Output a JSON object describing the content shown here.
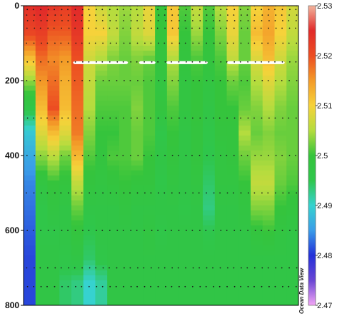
{
  "chart_data": {
    "type": "heatmap",
    "title": "",
    "xlabel": "",
    "ylabel": "",
    "y_axis": {
      "reversed": true,
      "ylim": [
        0,
        800
      ],
      "ticks": [
        0,
        200,
        400,
        600,
        800
      ]
    },
    "colorbar": {
      "min": 2.47,
      "max": 2.53,
      "ticks": [
        2.53,
        2.52,
        2.51,
        2.5,
        2.49,
        2.48,
        2.47
      ],
      "tick_labels": [
        "2.53",
        "2.52",
        "2.51",
        "2.5",
        "2.49",
        "2.48",
        "2.47"
      ],
      "stops": [
        {
          "v": 2.47,
          "c": "#f3a6f5"
        },
        {
          "v": 2.475,
          "c": "#6a46d4"
        },
        {
          "v": 2.48,
          "c": "#2330d8"
        },
        {
          "v": 2.485,
          "c": "#3a9ce8"
        },
        {
          "v": 2.49,
          "c": "#36d2cf"
        },
        {
          "v": 2.495,
          "c": "#2fc64c"
        },
        {
          "v": 2.5,
          "c": "#35c43c"
        },
        {
          "v": 2.505,
          "c": "#b4dc3e"
        },
        {
          "v": 2.51,
          "c": "#f6d23a"
        },
        {
          "v": 2.515,
          "c": "#f39a28"
        },
        {
          "v": 2.52,
          "c": "#ec4d22"
        },
        {
          "v": 2.525,
          "c": "#e12a2a"
        },
        {
          "v": 2.53,
          "c": "#f2b49c"
        }
      ]
    },
    "columns": [
      [
        2.524,
        2.521,
        2.512,
        2.503,
        2.496,
        2.489,
        2.486,
        2.484,
        2.483,
        2.482,
        2.481,
        2.481
      ],
      [
        2.525,
        2.522,
        2.518,
        2.515,
        2.512,
        2.508,
        2.503,
        2.498,
        2.496,
        2.496,
        2.497,
        2.497
      ],
      [
        2.523,
        2.519,
        2.516,
        2.518,
        2.52,
        2.512,
        2.505,
        2.5,
        2.498,
        2.496,
        2.497,
        2.497
      ],
      [
        2.522,
        2.519,
        2.515,
        2.513,
        2.512,
        2.508,
        2.502,
        2.499,
        2.497,
        2.497,
        2.496,
        2.494
      ],
      [
        2.525,
        2.523,
        2.52,
        2.519,
        2.518,
        2.517,
        2.512,
        2.506,
        2.502,
        2.499,
        2.497,
        2.493
      ],
      [
        2.51,
        2.51,
        2.507,
        2.506,
        2.505,
        2.503,
        2.501,
        2.499,
        2.497,
        2.495,
        2.494,
        2.49
      ],
      [
        2.507,
        2.51,
        2.505,
        2.502,
        2.501,
        2.5,
        2.499,
        2.498,
        2.497,
        2.497,
        2.496,
        2.492
      ],
      [
        2.505,
        2.506,
        2.503,
        2.502,
        2.501,
        2.5,
        2.501,
        2.499,
        2.497,
        2.497,
        2.497,
        2.497
      ],
      [
        2.504,
        2.503,
        2.502,
        2.502,
        2.501,
        2.501,
        2.501,
        2.5,
        2.498,
        2.497,
        2.497,
        2.497
      ],
      [
        2.505,
        2.506,
        2.503,
        2.502,
        2.503,
        2.502,
        2.502,
        2.499,
        2.497,
        2.497,
        2.497,
        2.497
      ],
      [
        2.509,
        2.508,
        2.502,
        2.501,
        2.501,
        2.501,
        2.5,
        2.499,
        2.497,
        2.498,
        2.497,
        2.497
      ],
      [
        2.5,
        2.5,
        2.499,
        2.498,
        2.499,
        2.496,
        2.497,
        2.496,
        2.497,
        2.496,
        2.497,
        2.497
      ],
      [
        2.511,
        2.511,
        2.505,
        2.503,
        2.501,
        2.5,
        2.499,
        2.498,
        2.497,
        2.497,
        2.497,
        2.497
      ],
      [
        2.501,
        2.5,
        2.499,
        2.498,
        2.498,
        2.497,
        2.497,
        2.497,
        2.496,
        2.497,
        2.497,
        2.497
      ],
      [
        2.506,
        2.504,
        2.501,
        2.5,
        2.5,
        2.499,
        2.499,
        2.498,
        2.497,
        2.497,
        2.497,
        2.497
      ],
      [
        2.501,
        2.5,
        2.499,
        2.498,
        2.497,
        2.496,
        2.495,
        2.494,
        2.493,
        2.495,
        2.497,
        2.497
      ],
      [
        2.505,
        2.503,
        2.501,
        2.5,
        2.5,
        2.499,
        2.498,
        2.498,
        2.497,
        2.497,
        2.497,
        2.497
      ],
      [
        2.51,
        2.509,
        2.506,
        2.502,
        2.5,
        2.499,
        2.499,
        2.498,
        2.497,
        2.497,
        2.497,
        2.497
      ],
      [
        2.503,
        2.502,
        2.502,
        2.501,
        2.502,
        2.505,
        2.502,
        2.5,
        2.498,
        2.497,
        2.497,
        2.497
      ],
      [
        2.51,
        2.512,
        2.508,
        2.505,
        2.503,
        2.502,
        2.504,
        2.506,
        2.503,
        2.499,
        2.497,
        2.497
      ],
      [
        2.513,
        2.514,
        2.512,
        2.508,
        2.505,
        2.503,
        2.504,
        2.506,
        2.503,
        2.5,
        2.497,
        2.497
      ],
      [
        2.511,
        2.51,
        2.507,
        2.505,
        2.503,
        2.502,
        2.503,
        2.502,
        2.5,
        2.498,
        2.497,
        2.497
      ],
      [
        2.507,
        2.506,
        2.504,
        2.503,
        2.502,
        2.502,
        2.502,
        2.501,
        2.499,
        2.497,
        2.497,
        2.497
      ]
    ],
    "missing_regions": [
      {
        "x0": 0.18,
        "x1": 0.38,
        "y0": 148,
        "y1": 156
      },
      {
        "x0": 0.42,
        "x1": 0.48,
        "y0": 148,
        "y1": 156
      },
      {
        "x0": 0.52,
        "x1": 0.67,
        "y0": 148,
        "y1": 156
      },
      {
        "x0": 0.74,
        "x1": 0.95,
        "y0": 148,
        "y1": 156
      }
    ],
    "sample_depths": [
      0,
      10,
      25,
      40,
      60,
      100,
      150,
      200,
      300,
      400,
      500,
      600,
      700,
      750
    ],
    "brand_text": "Ocean Data View"
  }
}
